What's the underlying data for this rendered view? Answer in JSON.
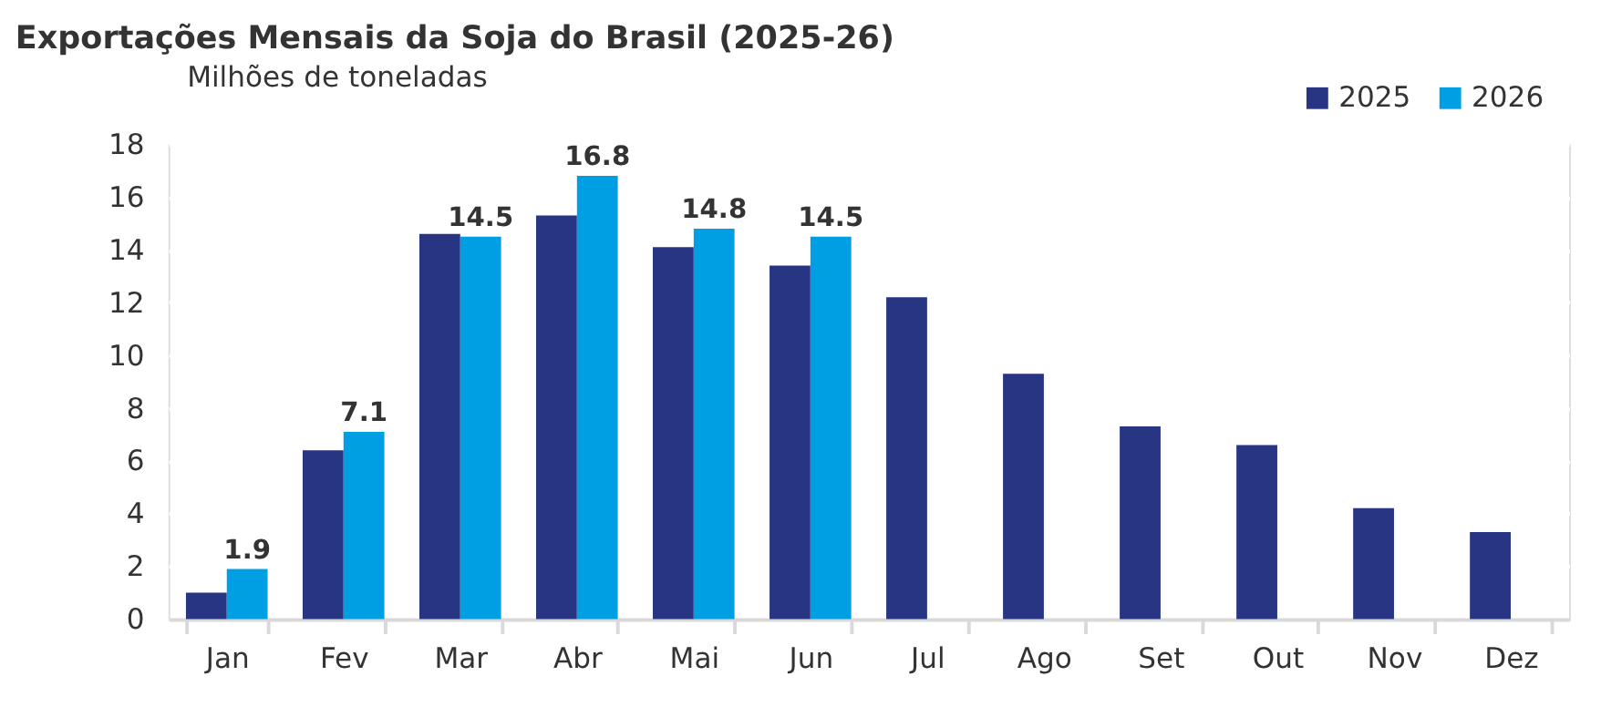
{
  "chart_data": {
    "type": "bar",
    "title": "Exportações Mensais da Soja do Brasil (2025-26)",
    "ylabel": "Milhões de toneladas",
    "categories": [
      "Jan",
      "Fev",
      "Mar",
      "Abr",
      "Mai",
      "Jun",
      "Jul",
      "Ago",
      "Set",
      "Out",
      "Nov",
      "Dez"
    ],
    "series": [
      {
        "name": "2025",
        "color": "#283583",
        "values": [
          1.0,
          6.4,
          14.6,
          15.3,
          14.1,
          13.4,
          12.2,
          9.3,
          7.3,
          6.6,
          4.2,
          3.3
        ]
      },
      {
        "name": "2026",
        "color": "#009fe3",
        "values": [
          1.9,
          7.1,
          14.5,
          16.8,
          14.8,
          14.5,
          null,
          null,
          null,
          null,
          null,
          null
        ],
        "value_labels": [
          "1.9",
          "7.1",
          "14.5",
          "16.8",
          "14.8",
          "14.5",
          null,
          null,
          null,
          null,
          null,
          null
        ]
      }
    ],
    "ylim": [
      0,
      18
    ],
    "yticks": [
      0,
      2,
      4,
      6,
      8,
      10,
      12,
      14,
      16,
      18
    ],
    "grid": "y",
    "legend": "top right"
  }
}
